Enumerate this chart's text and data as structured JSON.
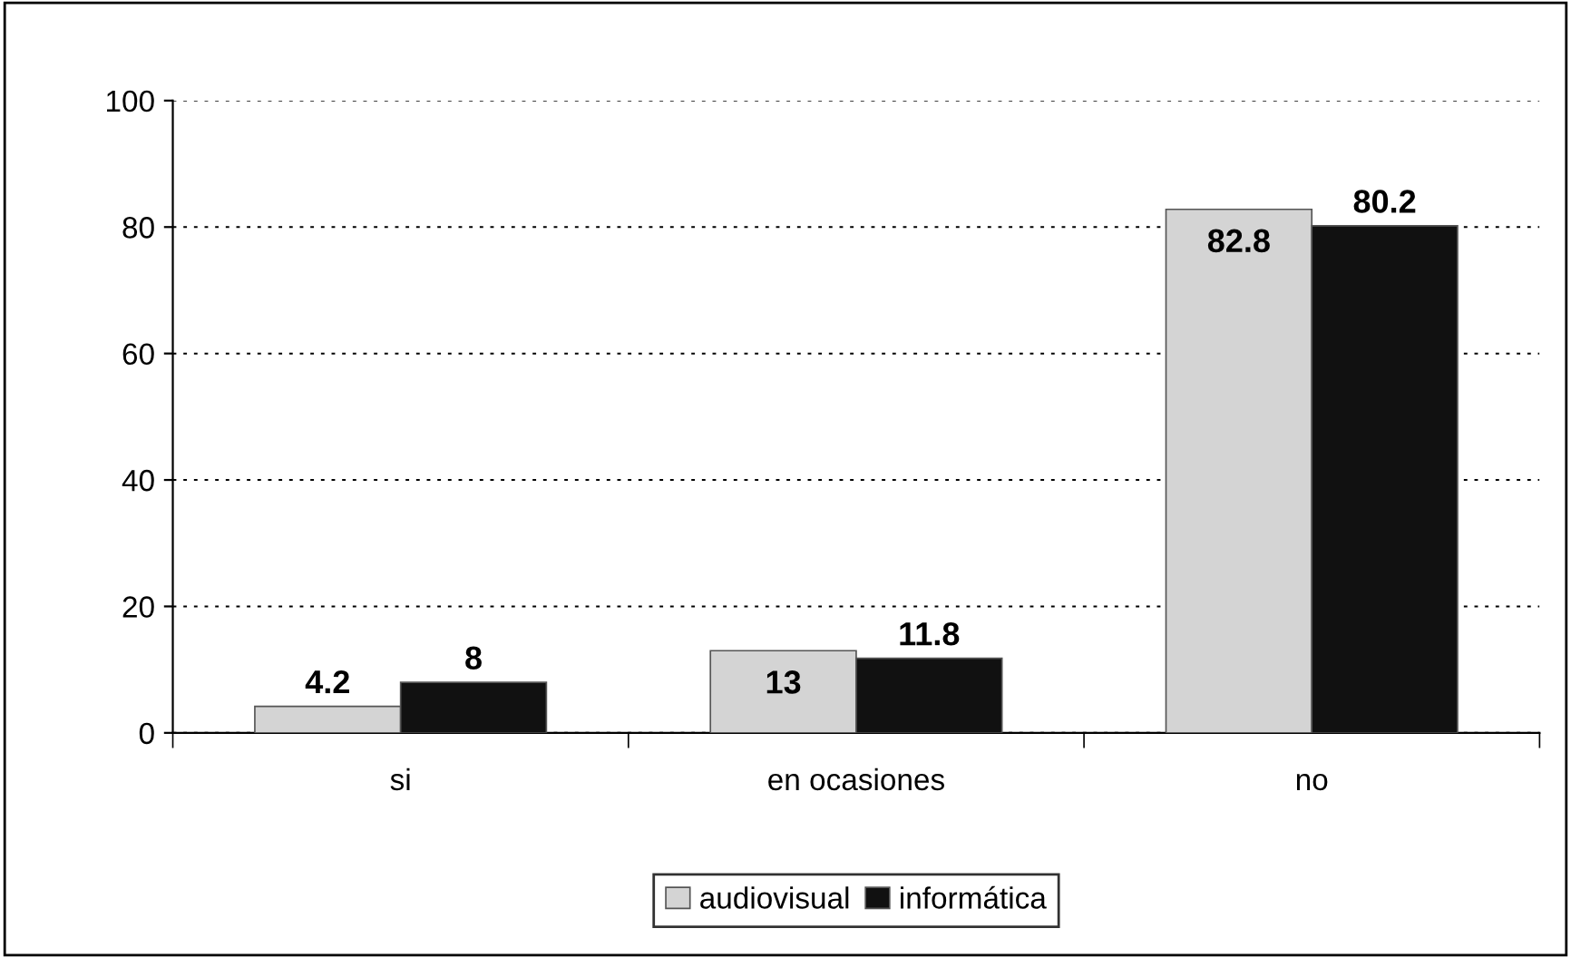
{
  "chart_data": {
    "type": "bar",
    "categories": [
      "si",
      "en ocasiones",
      "no"
    ],
    "series": [
      {
        "name": "audiovisual",
        "color": "#d4d4d4",
        "values": [
          4.2,
          13,
          82.8
        ]
      },
      {
        "name": "informática",
        "color": "#111111",
        "values": [
          8,
          11.8,
          80.2
        ]
      }
    ],
    "ylim": [
      0,
      100
    ],
    "yticks": [
      0,
      20,
      40,
      60,
      80,
      100
    ],
    "grid": "y",
    "legend": "bottom",
    "data_labels": true
  }
}
